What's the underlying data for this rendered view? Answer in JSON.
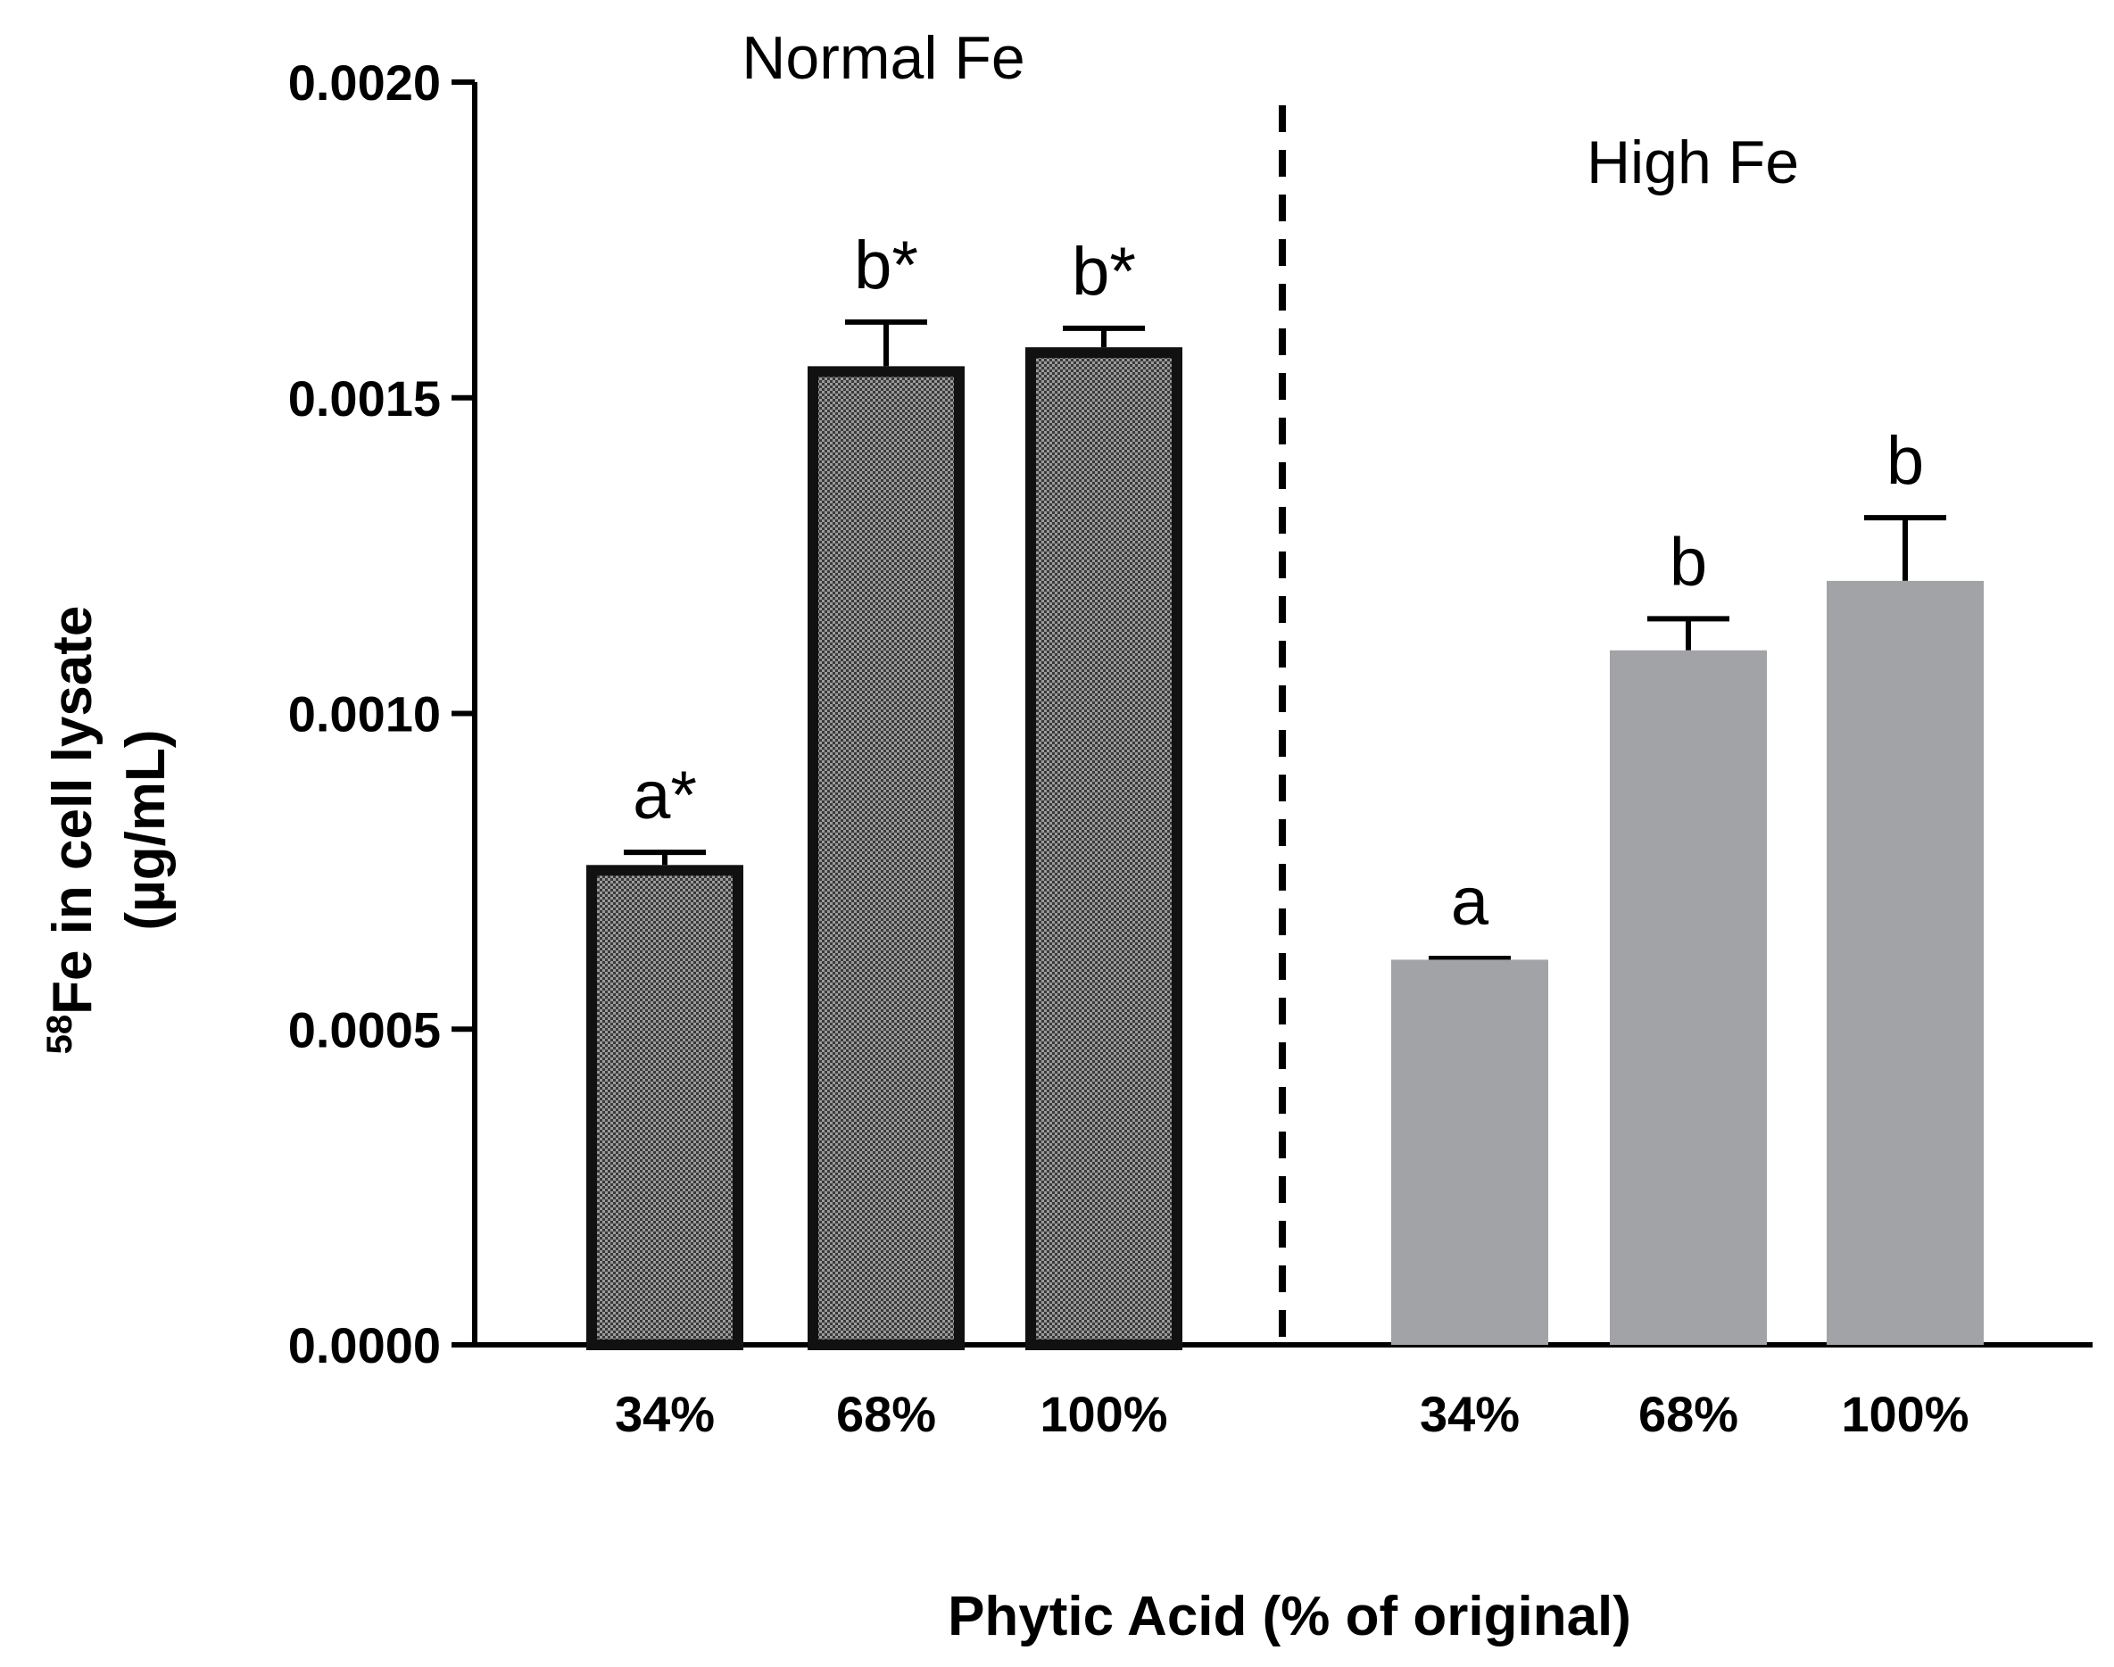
{
  "chart_data": {
    "type": "bar",
    "ylabel_prefix_superscript": "58",
    "ylabel_line1": "Fe in cell lysate",
    "ylabel_line2": "(µg/mL)",
    "xlabel": "Phytic Acid (% of original)",
    "ylim": [
      0,
      0.002
    ],
    "yticks": [
      "0.0000",
      "0.0005",
      "0.0010",
      "0.0015",
      "0.0020"
    ],
    "ytick_values": [
      0,
      0.0005,
      0.001,
      0.0015,
      0.002
    ],
    "groups": [
      {
        "name": "Normal Fe",
        "categories": [
          "34%",
          "68%",
          "100%"
        ],
        "values": [
          0.00076,
          0.00155,
          0.00158
        ],
        "errors": [
          2e-05,
          7e-05,
          3e-05
        ],
        "labels": [
          "a*",
          "b*",
          "b*"
        ],
        "style": "patterned-dark"
      },
      {
        "name": "High Fe",
        "categories": [
          "34%",
          "68%",
          "100%"
        ],
        "values": [
          0.00061,
          0.0011,
          0.00121
        ],
        "errors": [
          2e-06,
          5e-05,
          0.0001
        ],
        "labels": [
          "a",
          "b",
          "b"
        ],
        "style": "solid-gray"
      }
    ],
    "colors": {
      "dark_bar_border": "#111111",
      "dark_bar_fill": "#6a6a6a",
      "light_bar_fill": "#a2a3a6"
    },
    "divider": "dashed-vertical-between-groups"
  }
}
